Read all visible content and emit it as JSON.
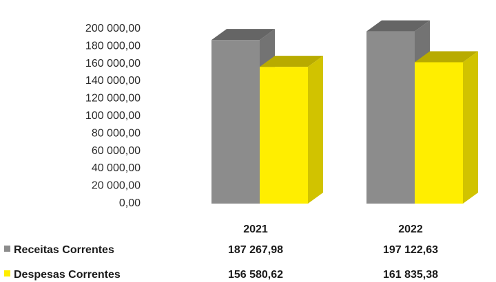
{
  "chart_data": {
    "type": "bar",
    "style": "3d-clustered-column-with-data-table",
    "categories": [
      "2021",
      "2022"
    ],
    "series": [
      {
        "name": "Receitas Correntes",
        "color": "#8c8c8c",
        "values": [
          187267.98,
          197122.63
        ],
        "labels": [
          "187 267,98",
          "197 122,63"
        ]
      },
      {
        "name": "Despesas Correntes",
        "color": "#ffee00",
        "values": [
          156580.62,
          161835.38
        ],
        "labels": [
          "156 580,62",
          "161 835,38"
        ]
      }
    ],
    "ylim": [
      0,
      200000
    ],
    "yticks": [
      {
        "value": 0,
        "label": "0,00"
      },
      {
        "value": 20000,
        "label": "20 000,00"
      },
      {
        "value": 40000,
        "label": "40 000,00"
      },
      {
        "value": 60000,
        "label": "60 000,00"
      },
      {
        "value": 80000,
        "label": "80 000,00"
      },
      {
        "value": 100000,
        "label": "100 000,00"
      },
      {
        "value": 120000,
        "label": "120 000,00"
      },
      {
        "value": 140000,
        "label": "140 000,00"
      },
      {
        "value": 160000,
        "label": "160 000,00"
      },
      {
        "value": 180000,
        "label": "180 000,00"
      },
      {
        "value": 200000,
        "label": "200 000,00"
      }
    ],
    "grid": false,
    "legend": "data-table-rows"
  }
}
